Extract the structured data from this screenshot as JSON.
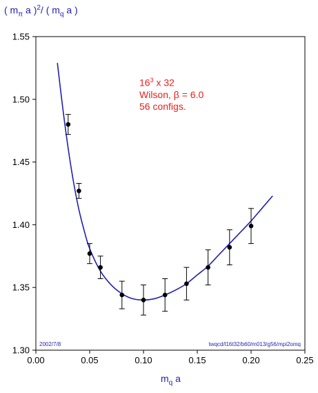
{
  "chart_data": {
    "type": "scatter",
    "ylabel": {
      "open": "( m",
      "sub1": "π",
      "mid": " a )",
      "sup": "2",
      "slash": "/ ( m",
      "sub2": "q",
      "close": " a )"
    },
    "xlabel": {
      "main": "m",
      "sub": "q",
      "tail": " a"
    },
    "xlim": [
      0.0,
      0.25
    ],
    "ylim": [
      1.3,
      1.55
    ],
    "xticks": [
      0.0,
      0.05,
      0.1,
      0.15,
      0.2,
      0.25
    ],
    "xtick_labels": [
      "0.00",
      "0.05",
      "0.10",
      "0.15",
      "0.20",
      "0.25"
    ],
    "yticks": [
      1.3,
      1.35,
      1.4,
      1.45,
      1.5,
      1.55
    ],
    "ytick_labels": [
      "1.30",
      "1.35",
      "1.40",
      "1.45",
      "1.50",
      "1.55"
    ],
    "points": [
      {
        "x": 0.03,
        "y": 1.48,
        "err": 0.008
      },
      {
        "x": 0.04,
        "y": 1.427,
        "err": 0.006
      },
      {
        "x": 0.05,
        "y": 1.377,
        "err": 0.008
      },
      {
        "x": 0.06,
        "y": 1.366,
        "err": 0.009
      },
      {
        "x": 0.08,
        "y": 1.344,
        "err": 0.011
      },
      {
        "x": 0.1,
        "y": 1.34,
        "err": 0.012
      },
      {
        "x": 0.12,
        "y": 1.344,
        "err": 0.013
      },
      {
        "x": 0.14,
        "y": 1.353,
        "err": 0.013
      },
      {
        "x": 0.16,
        "y": 1.366,
        "err": 0.014
      },
      {
        "x": 0.18,
        "y": 1.382,
        "err": 0.014
      },
      {
        "x": 0.2,
        "y": 1.399,
        "err": 0.014
      }
    ],
    "fit_curve": {
      "x": [
        0.02,
        0.025,
        0.03,
        0.035,
        0.04,
        0.045,
        0.05,
        0.06,
        0.07,
        0.08,
        0.09,
        0.1,
        0.11,
        0.12,
        0.13,
        0.14,
        0.15,
        0.16,
        0.17,
        0.18,
        0.19,
        0.2,
        0.21,
        0.22
      ],
      "y": [
        1.529,
        1.493,
        1.461,
        1.434,
        1.412,
        1.395,
        1.381,
        1.363,
        1.352,
        1.345,
        1.341,
        1.34,
        1.341,
        1.344,
        1.348,
        1.353,
        1.36,
        1.367,
        1.376,
        1.385,
        1.394,
        1.403,
        1.413,
        1.423
      ]
    },
    "annotation": {
      "line1_base": "16",
      "line1_sup": "3",
      "line1_tail": " x 32",
      "line2": "Wilson, β = 6.0",
      "line3": "56 configs."
    },
    "footer_left": "2002/7/8",
    "footer_right": "twqcd/l16t32/b60/m013/g56/mpi2omq",
    "colors": {
      "axes": "#000000",
      "points": "#000000",
      "fit": "#1f1fb0",
      "annotation": "#e8201c",
      "labels": "#1f1fb0"
    },
    "grid": false
  }
}
